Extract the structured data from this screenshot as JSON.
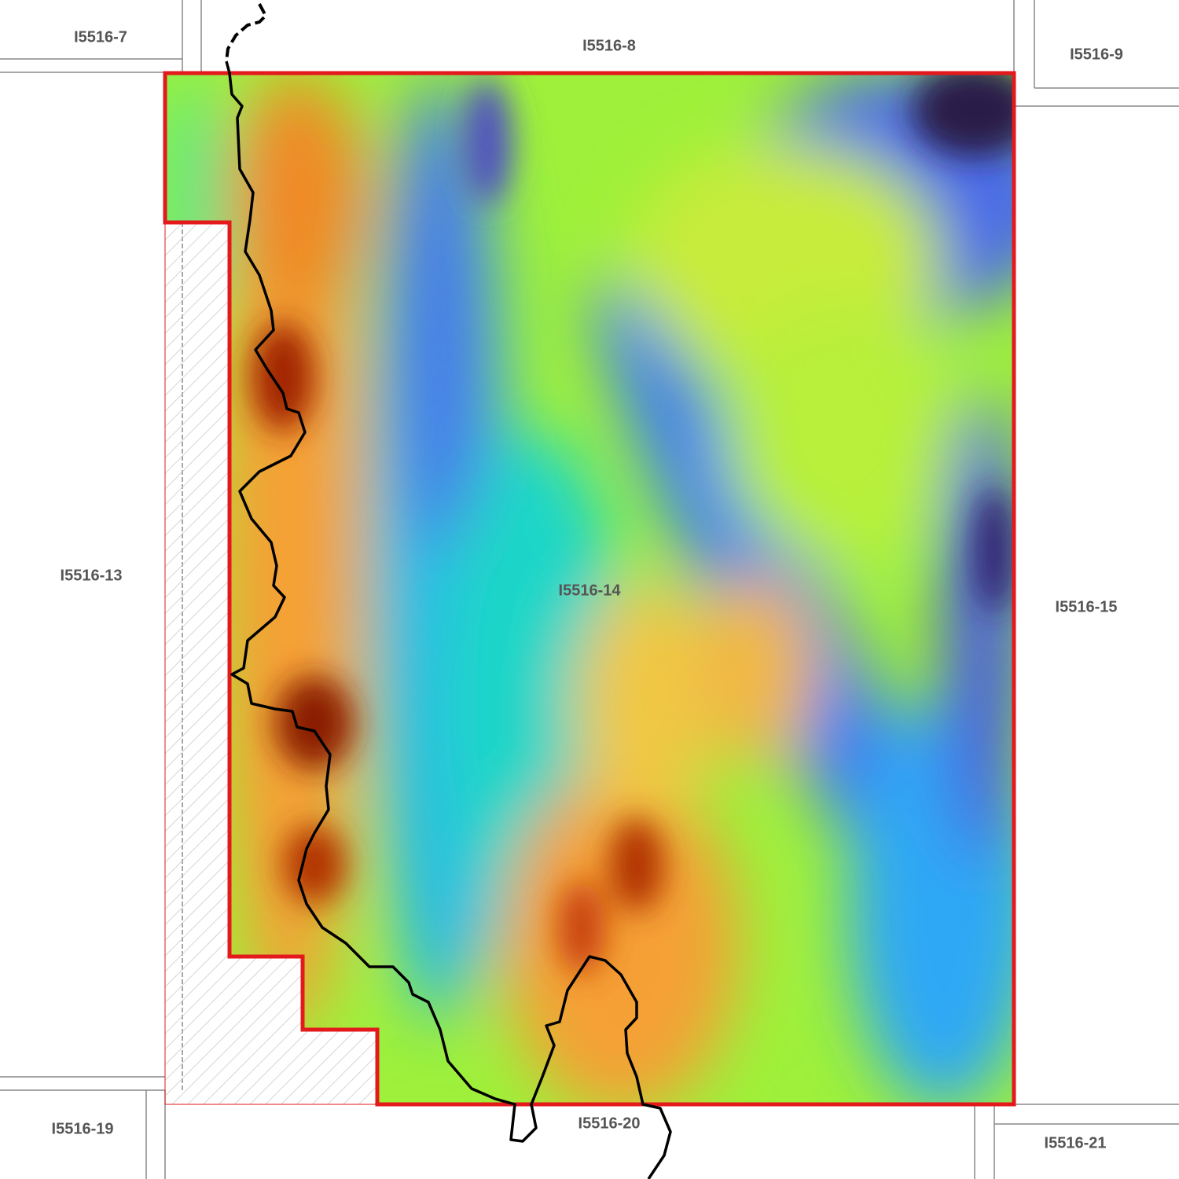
{
  "map": {
    "tiles": [
      {
        "id": "I5516-7"
      },
      {
        "id": "I5516-8"
      },
      {
        "id": "I5516-9"
      },
      {
        "id": "I5516-13"
      },
      {
        "id": "I5516-14"
      },
      {
        "id": "I5516-15"
      },
      {
        "id": "I5516-19"
      },
      {
        "id": "I5516-20"
      },
      {
        "id": "I5516-21"
      }
    ],
    "colors": {
      "boundary": "#e3191c",
      "tile_grid": "#888888",
      "path_line": "#000000",
      "label": "#555555",
      "elevation_ramp": [
        "#2a1a4a",
        "#4a5ae8",
        "#2fa8f5",
        "#1dd6c8",
        "#5ef06a",
        "#b4f03a",
        "#f5c040",
        "#f59030",
        "#e05010",
        "#8a1a00"
      ]
    },
    "layers": [
      "elevation-raster",
      "tile-index-grid",
      "study-area-boundary",
      "excluded-hatched-area",
      "track-line"
    ]
  }
}
